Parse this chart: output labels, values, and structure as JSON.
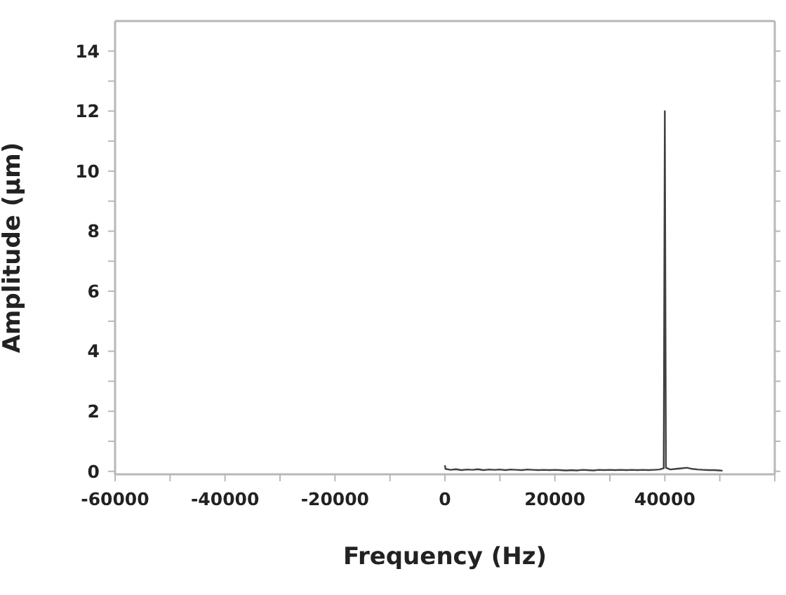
{
  "chart_data": {
    "type": "line",
    "xlabel": "Frequency (Hz)",
    "ylabel": "Amplitude (μm)",
    "x": [
      0,
      100,
      1000,
      2000,
      3000,
      4000,
      5000,
      6000,
      7000,
      8000,
      9000,
      10000,
      11000,
      12000,
      13000,
      14000,
      15000,
      16000,
      17000,
      18000,
      19000,
      20000,
      21000,
      22000,
      23000,
      24000,
      25000,
      26000,
      27000,
      28000,
      29000,
      30000,
      31000,
      32000,
      33000,
      34000,
      35000,
      36000,
      37000,
      38000,
      39000,
      39800,
      40000,
      40200,
      41000,
      42000,
      43000,
      44000,
      45000,
      46000,
      47000,
      48000,
      49000,
      50000,
      50500
    ],
    "series": [
      {
        "color": "#404040",
        "values": [
          0.2,
          0.08,
          0.05,
          0.07,
          0.04,
          0.06,
          0.05,
          0.07,
          0.04,
          0.06,
          0.05,
          0.06,
          0.04,
          0.06,
          0.05,
          0.04,
          0.06,
          0.05,
          0.04,
          0.05,
          0.04,
          0.05,
          0.04,
          0.03,
          0.04,
          0.03,
          0.05,
          0.04,
          0.03,
          0.05,
          0.04,
          0.05,
          0.04,
          0.05,
          0.04,
          0.05,
          0.04,
          0.05,
          0.04,
          0.05,
          0.06,
          0.1,
          12,
          0.12,
          0.06,
          0.08,
          0.1,
          0.12,
          0.08,
          0.06,
          0.05,
          0.04,
          0.04,
          0.03,
          0.02
        ]
      }
    ],
    "xlim": [
      -60000,
      60000
    ],
    "xticks": [
      -60000,
      {
        "value": -50000,
        "label": null
      },
      -40000,
      {
        "value": -30000,
        "label": null
      },
      -20000,
      {
        "value": -10000,
        "label": null
      },
      0,
      {
        "value": 10000,
        "label": null
      },
      20000,
      {
        "value": 30000,
        "label": null
      },
      40000,
      {
        "value": 50000,
        "label": null
      },
      {
        "value": 60000,
        "label": null
      }
    ],
    "ylim": [
      -0.1,
      15
    ],
    "yticks": [
      0,
      {
        "value": 1,
        "label": null
      },
      2,
      {
        "value": 3,
        "label": null
      },
      4,
      {
        "value": 5,
        "label": null
      },
      6,
      {
        "value": 7,
        "label": null
      },
      8,
      {
        "value": 9,
        "label": null
      },
      10,
      {
        "value": 11,
        "label": null
      },
      12,
      {
        "value": 13,
        "label": null
      },
      14
    ],
    "grid": false,
    "legend": false
  }
}
